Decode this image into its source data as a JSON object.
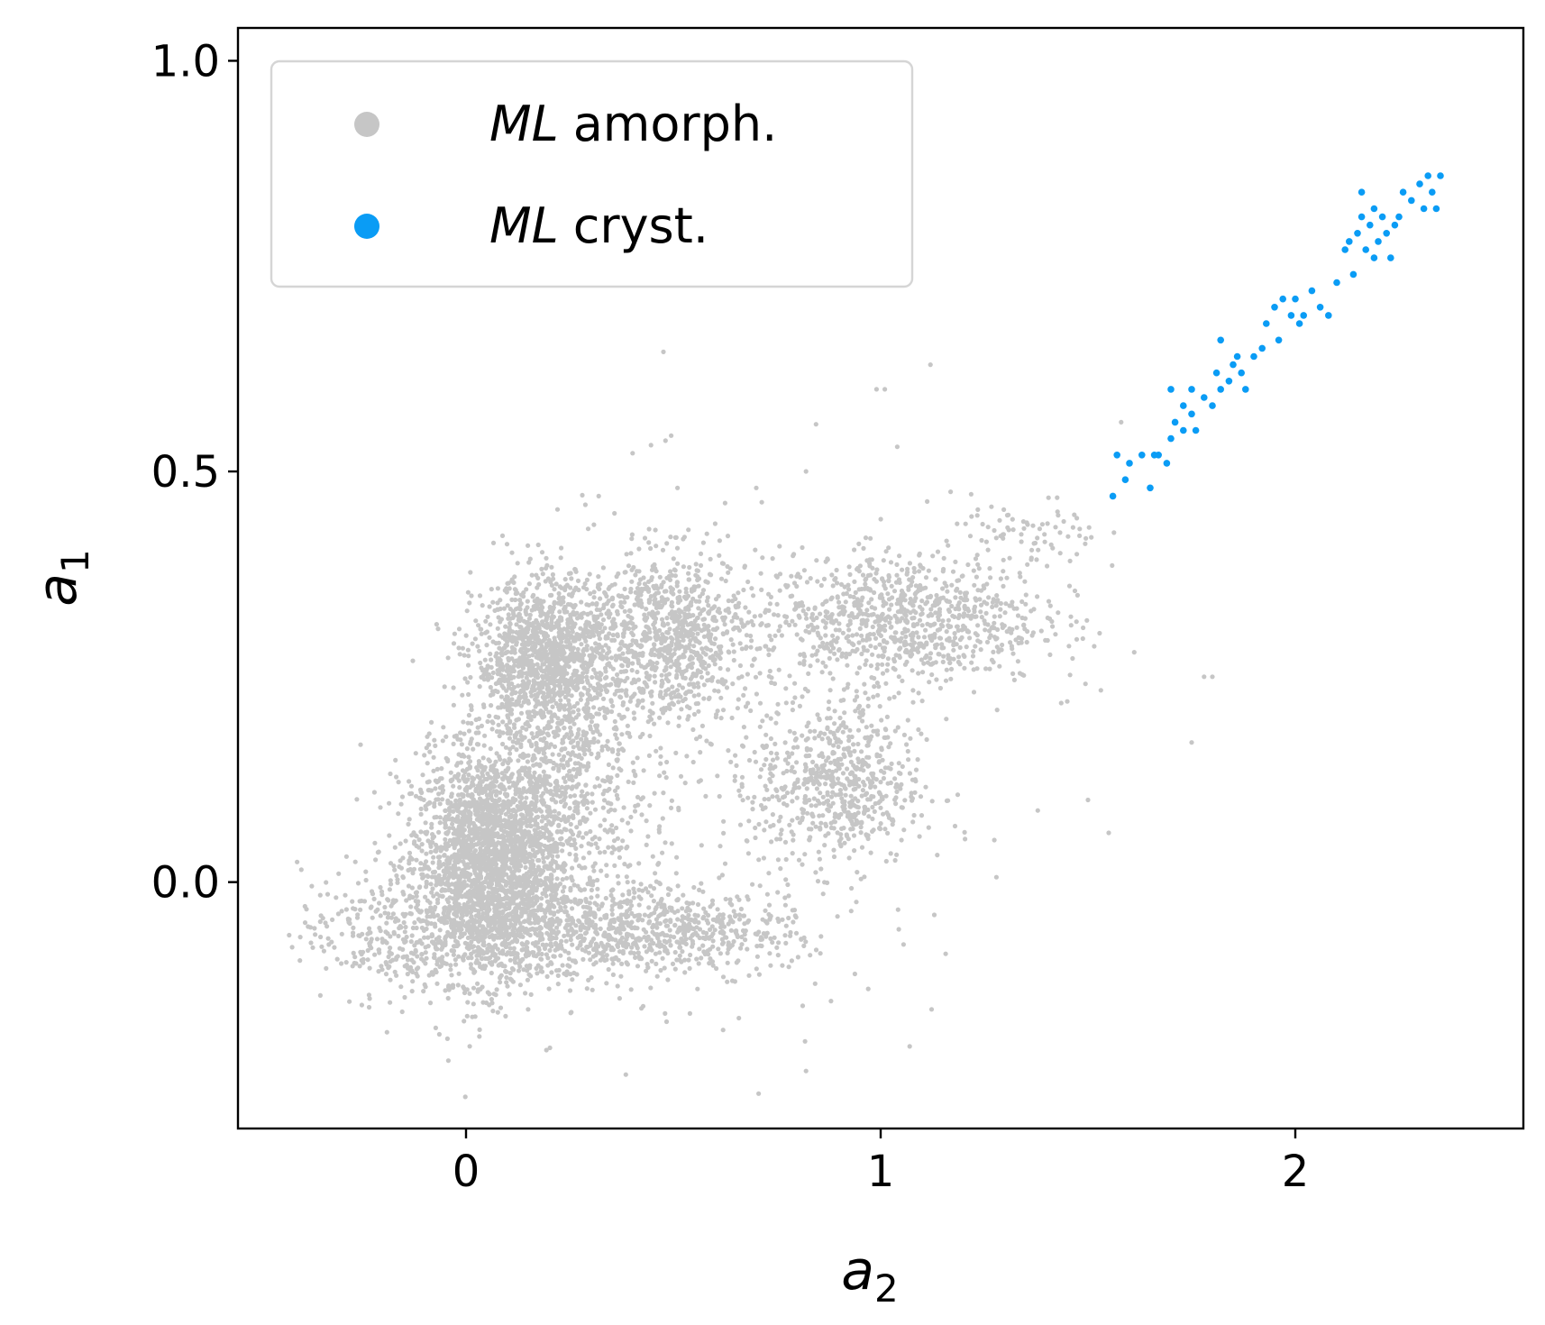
{
  "chart_data": {
    "type": "scatter",
    "xlabel": "a",
    "xlabel_sub": "2",
    "ylabel": "a",
    "ylabel_sub": "1",
    "xlim": [
      -0.55,
      2.55
    ],
    "ylim": [
      -0.3,
      1.04
    ],
    "xticks": [
      0,
      1,
      2
    ],
    "xtick_labels": [
      "0",
      "1",
      "2"
    ],
    "yticks": [
      0.0,
      0.5,
      1.0
    ],
    "ytick_labels": [
      "0.0",
      "0.5",
      "1.0"
    ],
    "grid": false,
    "legend_position": "top-left",
    "series": [
      {
        "name": "amorph.",
        "name_prefix": "ML",
        "color": "#c6c6c6",
        "marker_size": "small",
        "clusters": [
          {
            "cx": 0.05,
            "cy": 0.02,
            "sx": 0.09,
            "sy": 0.07,
            "n": 2200
          },
          {
            "cx": -0.2,
            "cy": -0.06,
            "sx": 0.1,
            "sy": 0.04,
            "n": 250
          },
          {
            "cx": 0.3,
            "cy": -0.06,
            "sx": 0.2,
            "sy": 0.03,
            "n": 900
          },
          {
            "cx": 0.6,
            "cy": -0.06,
            "sx": 0.1,
            "sy": 0.025,
            "n": 150
          },
          {
            "cx": 0.2,
            "cy": 0.27,
            "sx": 0.09,
            "sy": 0.05,
            "n": 1400
          },
          {
            "cx": 0.5,
            "cy": 0.3,
            "sx": 0.09,
            "sy": 0.05,
            "n": 800
          },
          {
            "cx": 0.2,
            "cy": 0.1,
            "sx": 0.12,
            "sy": 0.06,
            "n": 700
          },
          {
            "cx": 0.9,
            "cy": 0.12,
            "sx": 0.1,
            "sy": 0.05,
            "n": 600
          },
          {
            "cx": 1.05,
            "cy": 0.32,
            "sx": 0.17,
            "sy": 0.04,
            "n": 900
          },
          {
            "cx": 1.35,
            "cy": 0.42,
            "sx": 0.09,
            "sy": 0.025,
            "n": 80
          },
          {
            "cx": 0.6,
            "cy": 0.15,
            "sx": 0.3,
            "sy": 0.15,
            "n": 300
          }
        ],
        "outliers": [
          [
            1.01,
            0.6
          ],
          [
            1.12,
            0.63
          ],
          [
            1.04,
            0.53
          ],
          [
            1.58,
            0.56
          ],
          [
            1.78,
            0.25
          ],
          [
            1.8,
            0.25
          ],
          [
            1.75,
            0.17
          ],
          [
            0.82,
            -0.23
          ],
          [
            1.07,
            -0.2
          ],
          [
            0.32,
            0.47
          ],
          [
            0.51,
            0.48
          ],
          [
            0.7,
            0.48
          ],
          [
            0.82,
            0.5
          ],
          [
            1.48,
            0.43
          ],
          [
            1.5,
            0.1
          ],
          [
            1.55,
            0.06
          ],
          [
            1.45,
            0.22
          ],
          [
            0.97,
            -0.13
          ],
          [
            0.62,
            -0.18
          ],
          [
            0.54,
            -0.16
          ],
          [
            0.48,
            -0.16
          ],
          [
            0.99,
            0.6
          ]
        ]
      },
      {
        "name": "cryst.",
        "name_prefix": "ML",
        "color": "#0a9cf5",
        "marker_size": "medium",
        "points": [
          [
            1.56,
            0.47
          ],
          [
            1.57,
            0.52
          ],
          [
            1.59,
            0.49
          ],
          [
            1.6,
            0.51
          ],
          [
            1.63,
            0.52
          ],
          [
            1.65,
            0.48
          ],
          [
            1.66,
            0.52
          ],
          [
            1.69,
            0.51
          ],
          [
            1.7,
            0.54
          ],
          [
            1.71,
            0.56
          ],
          [
            1.73,
            0.55
          ],
          [
            1.75,
            0.57
          ],
          [
            1.76,
            0.55
          ],
          [
            1.78,
            0.59
          ],
          [
            1.8,
            0.58
          ],
          [
            1.81,
            0.62
          ],
          [
            1.82,
            0.6
          ],
          [
            1.84,
            0.61
          ],
          [
            1.85,
            0.63
          ],
          [
            1.86,
            0.64
          ],
          [
            1.88,
            0.6
          ],
          [
            1.9,
            0.64
          ],
          [
            1.92,
            0.65
          ],
          [
            1.93,
            0.68
          ],
          [
            1.95,
            0.7
          ],
          [
            1.97,
            0.71
          ],
          [
            1.99,
            0.69
          ],
          [
            2.0,
            0.71
          ],
          [
            2.02,
            0.69
          ],
          [
            2.04,
            0.72
          ],
          [
            2.06,
            0.7
          ],
          [
            2.08,
            0.69
          ],
          [
            2.1,
            0.73
          ],
          [
            2.12,
            0.77
          ],
          [
            2.14,
            0.74
          ],
          [
            2.15,
            0.79
          ],
          [
            2.16,
            0.81
          ],
          [
            2.17,
            0.77
          ],
          [
            2.18,
            0.8
          ],
          [
            2.19,
            0.82
          ],
          [
            2.2,
            0.78
          ],
          [
            2.21,
            0.81
          ],
          [
            2.22,
            0.79
          ],
          [
            2.23,
            0.76
          ],
          [
            2.25,
            0.81
          ],
          [
            2.26,
            0.84
          ],
          [
            2.28,
            0.83
          ],
          [
            2.3,
            0.85
          ],
          [
            2.31,
            0.82
          ],
          [
            2.32,
            0.86
          ],
          [
            2.33,
            0.84
          ],
          [
            2.34,
            0.82
          ],
          [
            2.35,
            0.86
          ],
          [
            1.82,
            0.66
          ],
          [
            1.96,
            0.66
          ],
          [
            1.7,
            0.6
          ],
          [
            1.75,
            0.6
          ],
          [
            2.16,
            0.84
          ],
          [
            2.13,
            0.78
          ],
          [
            2.19,
            0.76
          ],
          [
            1.67,
            0.52
          ],
          [
            1.73,
            0.58
          ],
          [
            1.87,
            0.62
          ],
          [
            2.01,
            0.68
          ],
          [
            2.24,
            0.8
          ]
        ]
      }
    ]
  }
}
